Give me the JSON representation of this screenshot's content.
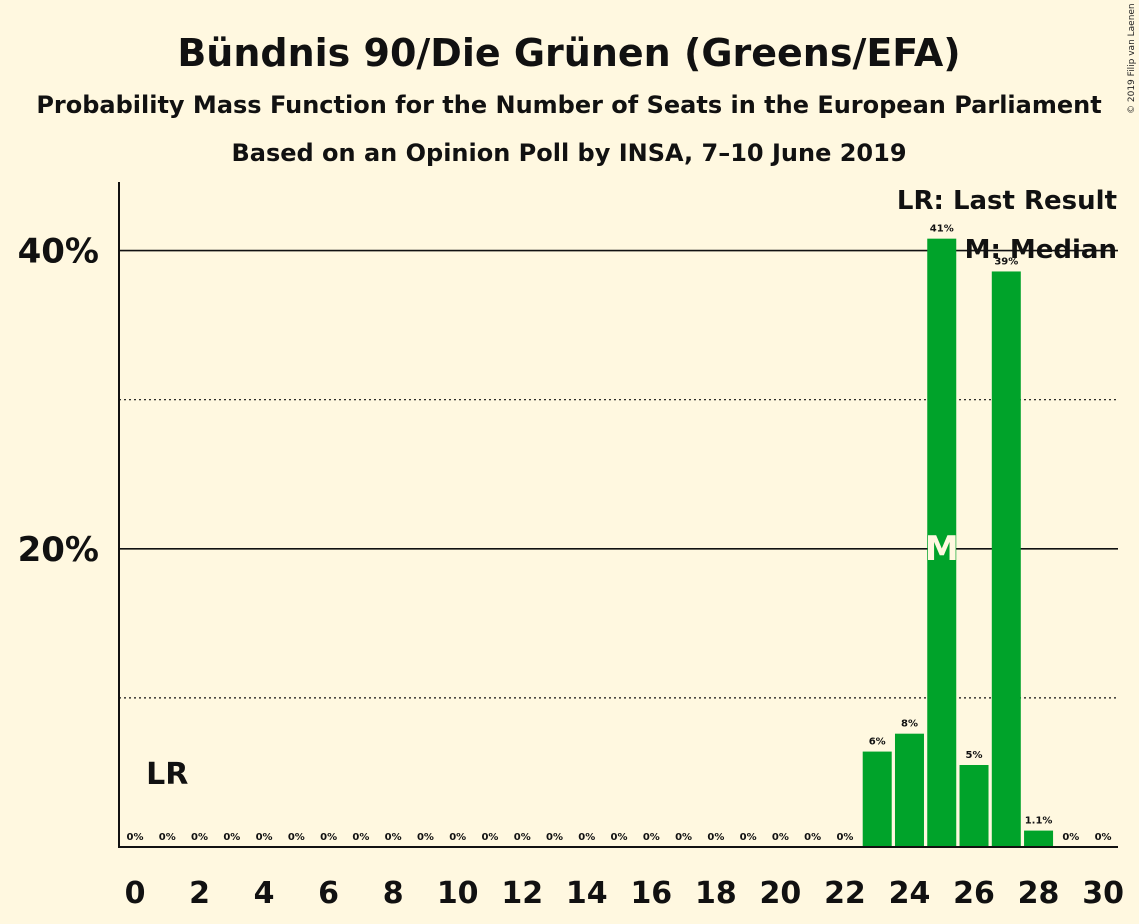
{
  "title": "Bündnis 90/Die Grünen (Greens/EFA)",
  "subtitle1": "Probability Mass Function for the Number of Seats in the European Parliament",
  "subtitle2": "Based on an Opinion Poll by INSA, 7–10 June 2019",
  "copyright": "© 2019 Filip van Laenen",
  "legend": {
    "lr": "LR: Last Result",
    "median": "M: Median"
  },
  "markers": {
    "lr_label": "LR",
    "lr_seat": 1,
    "median_label": "M",
    "median_seat": 25
  },
  "colors": {
    "background": "#fff8e0",
    "bar": "#00a32a",
    "text": "#111111"
  },
  "chart_data": {
    "type": "bar",
    "x": [
      0,
      1,
      2,
      3,
      4,
      5,
      6,
      7,
      8,
      9,
      10,
      11,
      12,
      13,
      14,
      15,
      16,
      17,
      18,
      19,
      20,
      21,
      22,
      23,
      24,
      25,
      26,
      27,
      28,
      29,
      30
    ],
    "values": [
      0,
      0,
      0,
      0,
      0,
      0,
      0,
      0,
      0,
      0,
      0,
      0,
      0,
      0,
      0,
      0,
      0,
      0,
      0,
      0,
      0,
      0,
      0,
      6.4,
      7.6,
      40.8,
      5.5,
      38.6,
      1.1,
      0,
      0
    ],
    "data_labels": [
      "0%",
      "0%",
      "0%",
      "0%",
      "0%",
      "0%",
      "0%",
      "0%",
      "0%",
      "0%",
      "0%",
      "0%",
      "0%",
      "0%",
      "0%",
      "0%",
      "0%",
      "0%",
      "0%",
      "0%",
      "0%",
      "0%",
      "0%",
      "6%",
      "8%",
      "41%",
      "5%",
      "39%",
      "1.1%",
      "0%",
      "0%"
    ],
    "x_tick_labels": [
      "0",
      "2",
      "4",
      "6",
      "8",
      "10",
      "12",
      "14",
      "16",
      "18",
      "20",
      "22",
      "24",
      "26",
      "28",
      "30"
    ],
    "y_tick_labels": [
      "20%",
      "40%"
    ],
    "y_major_gridlines": [
      20,
      40
    ],
    "y_minor_gridlines": [
      10,
      30
    ],
    "ylim": [
      0,
      44.6
    ],
    "xlabel": "",
    "ylabel": ""
  }
}
